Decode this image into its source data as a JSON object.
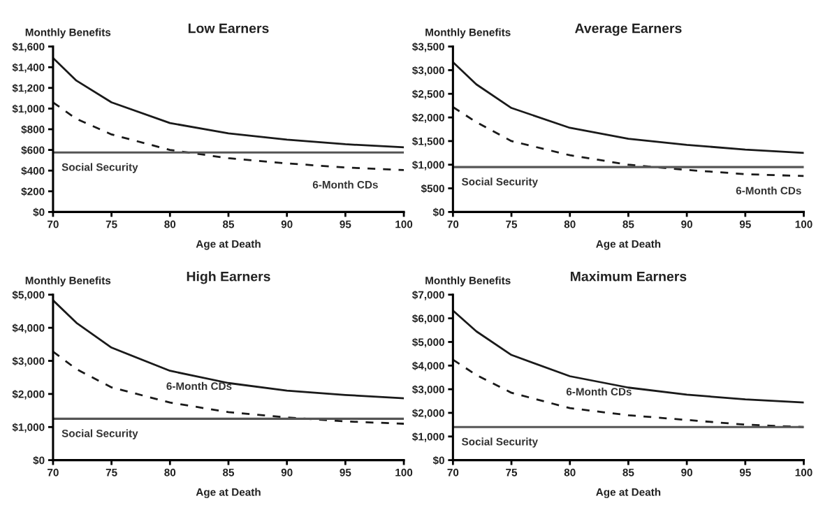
{
  "chart_data": [
    {
      "type": "line",
      "title": "Low Earners",
      "ylabel": "Monthly Benefits",
      "xlabel": "Age at Death",
      "x": [
        70,
        72,
        75,
        80,
        85,
        90,
        95,
        100
      ],
      "xlim": [
        70,
        100
      ],
      "xticks": [
        70,
        75,
        80,
        85,
        90,
        95,
        100
      ],
      "ylim": [
        0,
        1600
      ],
      "yticks": [
        {
          "value": 0,
          "label": "$0"
        },
        {
          "value": 200,
          "label": "$200"
        },
        {
          "value": 400,
          "label": "$400"
        },
        {
          "value": 600,
          "label": "$600"
        },
        {
          "value": 800,
          "label": "$800"
        },
        {
          "value": 1000,
          "label": "$1,000"
        },
        {
          "value": 1200,
          "label": "$1,200"
        },
        {
          "value": 1400,
          "label": "$1,400"
        },
        {
          "value": 1600,
          "label": "$1,600"
        }
      ],
      "grid": false,
      "legend": false,
      "series": [
        {
          "color": "#1a1a1a",
          "line_style": "solid",
          "values": [
            1490,
            1270,
            1060,
            860,
            760,
            700,
            655,
            625
          ]
        },
        {
          "color": "#1a1a1a",
          "line_style": "dashed",
          "values": [
            1060,
            900,
            750,
            600,
            520,
            470,
            430,
            405
          ]
        },
        {
          "color": "#555555",
          "line_style": "solid",
          "values": [
            575,
            575,
            575,
            575,
            575,
            575,
            575,
            575
          ]
        }
      ],
      "annotations": [
        {
          "text": "6-Month CDs",
          "x": 95,
          "y": 405
        },
        {
          "text": "Social Security",
          "x": 74,
          "y": 575
        }
      ]
    },
    {
      "type": "line",
      "title": "Average Earners",
      "ylabel": "Monthly Benefits",
      "xlabel": "Age at Death",
      "x": [
        70,
        72,
        75,
        80,
        85,
        90,
        95,
        100
      ],
      "xlim": [
        70,
        100
      ],
      "xticks": [
        70,
        75,
        80,
        85,
        90,
        95,
        100
      ],
      "ylim": [
        0,
        3500
      ],
      "yticks": [
        {
          "value": 0,
          "label": "$0"
        },
        {
          "value": 500,
          "label": "$500"
        },
        {
          "value": 1000,
          "label": "$1,000"
        },
        {
          "value": 1500,
          "label": "$1,500"
        },
        {
          "value": 2000,
          "label": "$2,000"
        },
        {
          "value": 2500,
          "label": "$2,500"
        },
        {
          "value": 3000,
          "label": "$3,000"
        },
        {
          "value": 3500,
          "label": "$3,500"
        }
      ],
      "grid": false,
      "legend": false,
      "series": [
        {
          "color": "#1a1a1a",
          "line_style": "solid",
          "values": [
            3170,
            2700,
            2200,
            1780,
            1550,
            1420,
            1320,
            1250
          ]
        },
        {
          "color": "#1a1a1a",
          "line_style": "dashed",
          "values": [
            2220,
            1900,
            1500,
            1200,
            1000,
            890,
            800,
            760
          ]
        },
        {
          "color": "#555555",
          "line_style": "solid",
          "values": [
            950,
            950,
            950,
            950,
            950,
            950,
            950,
            950
          ]
        }
      ],
      "annotations": [
        {
          "text": "6-Month CDs",
          "x": 97,
          "y": 760
        },
        {
          "text": "Social Security",
          "x": 74,
          "y": 950
        }
      ]
    },
    {
      "type": "line",
      "title": "High Earners",
      "ylabel": "Monthly Benefits",
      "xlabel": "Age at Death",
      "x": [
        70,
        72,
        75,
        80,
        85,
        90,
        95,
        100
      ],
      "xlim": [
        70,
        100
      ],
      "xticks": [
        70,
        75,
        80,
        85,
        90,
        95,
        100
      ],
      "ylim": [
        0,
        5000
      ],
      "yticks": [
        {
          "value": 0,
          "label": "$0"
        },
        {
          "value": 1000,
          "label": "$1,000"
        },
        {
          "value": 2000,
          "label": "$2,000"
        },
        {
          "value": 3000,
          "label": "$3,000"
        },
        {
          "value": 4000,
          "label": "$4,000"
        },
        {
          "value": 5000,
          "label": "$5,000"
        }
      ],
      "grid": false,
      "legend": false,
      "series": [
        {
          "color": "#1a1a1a",
          "line_style": "solid",
          "values": [
            4830,
            4150,
            3400,
            2700,
            2330,
            2100,
            1970,
            1870
          ]
        },
        {
          "color": "#1a1a1a",
          "line_style": "dashed",
          "values": [
            3280,
            2750,
            2200,
            1740,
            1450,
            1290,
            1170,
            1100
          ]
        },
        {
          "color": "#555555",
          "line_style": "solid",
          "values": [
            1250,
            1250,
            1250,
            1250,
            1250,
            1250,
            1250,
            1250
          ]
        }
      ],
      "annotations": [
        {
          "text": "6-Month CDs",
          "x": 80,
          "y": 1740
        },
        {
          "text": "Social Security",
          "x": 74,
          "y": 1250
        }
      ]
    },
    {
      "type": "line",
      "title": "Maximum Earners",
      "ylabel": "Monthly Benefits",
      "xlabel": "Age at Death",
      "x": [
        70,
        72,
        75,
        80,
        85,
        90,
        95,
        100
      ],
      "xlim": [
        70,
        100
      ],
      "xticks": [
        70,
        75,
        80,
        85,
        90,
        95,
        100
      ],
      "ylim": [
        0,
        7000
      ],
      "yticks": [
        {
          "value": 0,
          "label": "$0"
        },
        {
          "value": 1000,
          "label": "$1,000"
        },
        {
          "value": 2000,
          "label": "$2,000"
        },
        {
          "value": 3000,
          "label": "$3,000"
        },
        {
          "value": 4000,
          "label": "$4,000"
        },
        {
          "value": 5000,
          "label": "$5,000"
        },
        {
          "value": 6000,
          "label": "$6,000"
        },
        {
          "value": 7000,
          "label": "$7,000"
        }
      ],
      "grid": false,
      "legend": false,
      "series": [
        {
          "color": "#1a1a1a",
          "line_style": "solid",
          "values": [
            6330,
            5450,
            4450,
            3550,
            3070,
            2770,
            2570,
            2440
          ]
        },
        {
          "color": "#1a1a1a",
          "line_style": "dashed",
          "values": [
            4250,
            3600,
            2850,
            2200,
            1900,
            1700,
            1500,
            1400
          ]
        },
        {
          "color": "#555555",
          "line_style": "solid",
          "values": [
            1400,
            1400,
            1400,
            1400,
            1400,
            1400,
            1400,
            1400
          ]
        }
      ],
      "annotations": [
        {
          "text": "6-Month CDs",
          "x": 80,
          "y": 2200
        },
        {
          "text": "Social Security",
          "x": 74,
          "y": 1400
        }
      ]
    }
  ]
}
